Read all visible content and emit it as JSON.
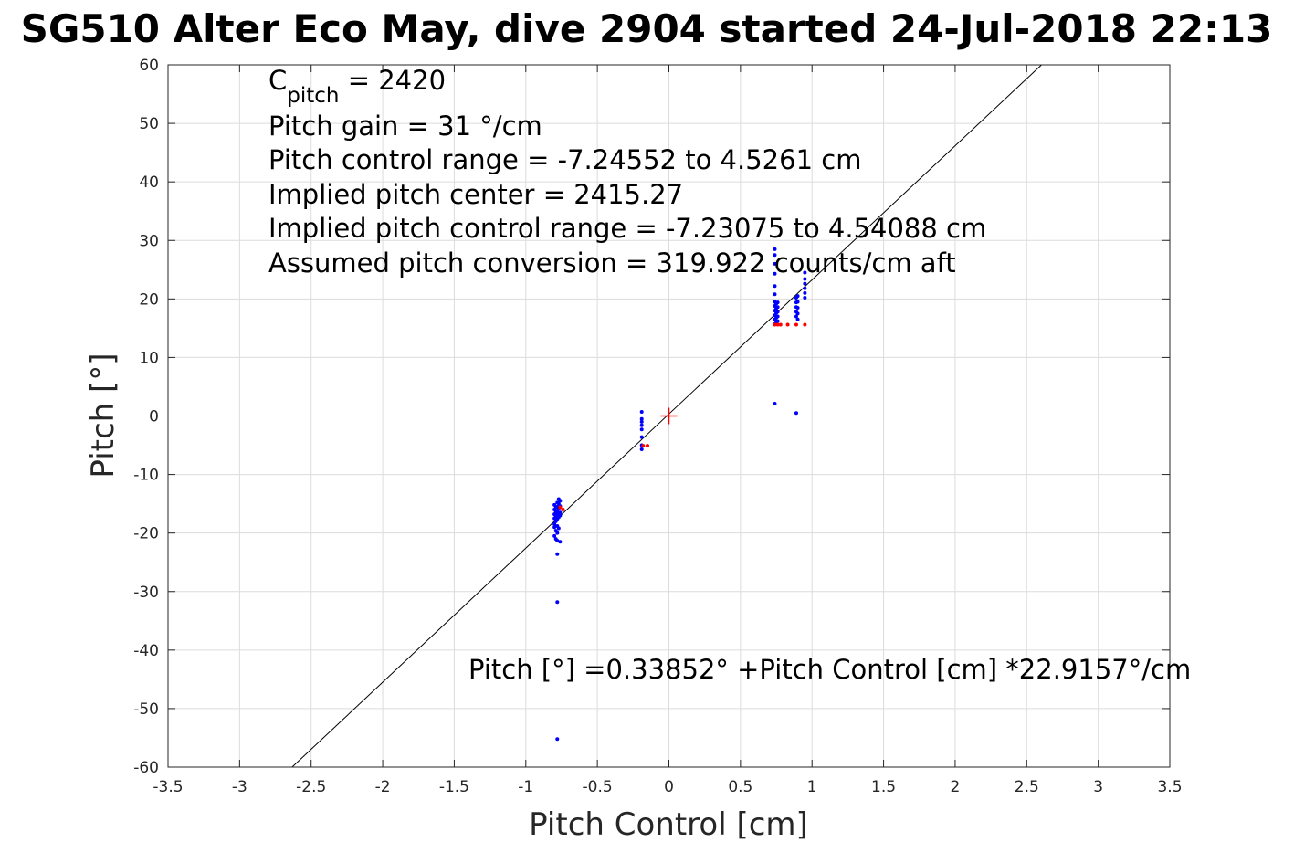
{
  "chart_data": {
    "type": "scatter",
    "title": "SG510 Alter Eco May, dive 2904 started 24-Jul-2018 22:13",
    "xlabel": "Pitch Control [cm]",
    "ylabel": "Pitch [°]",
    "xlim": [
      -3.5,
      3.5
    ],
    "ylim": [
      -60,
      60
    ],
    "xticks": [
      "-3.5",
      "-3",
      "-2.5",
      "-2",
      "-1.5",
      "-1",
      "-0.5",
      "0",
      "0.5",
      "1",
      "1.5",
      "2",
      "2.5",
      "3",
      "3.5"
    ],
    "yticks": [
      "60",
      "50",
      "40",
      "30",
      "20",
      "10",
      "0",
      "-10",
      "-20",
      "-30",
      "-40",
      "-50",
      "-60"
    ],
    "grid": true,
    "annotations": {
      "c_pitch_symbol": "C",
      "c_pitch_sub": "pitch",
      "c_pitch_value": " = 2420",
      "lines": [
        "Pitch gain = 31 °/cm",
        "Pitch control range = -7.24552 to 4.5261 cm",
        "Implied pitch center = 2415.27",
        "Implied pitch control range = -7.23075 to 4.54088 cm",
        "Assumed pitch conversion = 319.922 counts/cm aft"
      ],
      "fit_equation": "Pitch [°] =0.33852° +Pitch Control [cm] *22.9157°/cm"
    },
    "fit_line": {
      "intercept": 0.33852,
      "slope": 22.9157,
      "color": "#000000"
    },
    "center_marker": {
      "x": 0,
      "y": 0,
      "color": "#ff0000"
    },
    "series": [
      {
        "color": "#0000ff",
        "points": [
          [
            -0.8,
            -15.2
          ],
          [
            -0.8,
            -16.0
          ],
          [
            -0.8,
            -16.8
          ],
          [
            -0.8,
            -17.5
          ],
          [
            -0.8,
            -18.5
          ],
          [
            -0.8,
            -19.0
          ],
          [
            -0.8,
            -20.5
          ],
          [
            -0.79,
            -15.6
          ],
          [
            -0.79,
            -16.4
          ],
          [
            -0.79,
            -17.2
          ],
          [
            -0.79,
            -18.0
          ],
          [
            -0.79,
            -19.6
          ],
          [
            -0.79,
            -21.0
          ],
          [
            -0.78,
            -14.8
          ],
          [
            -0.78,
            -15.5
          ],
          [
            -0.78,
            -16.2
          ],
          [
            -0.78,
            -16.9
          ],
          [
            -0.78,
            -17.6
          ],
          [
            -0.78,
            -18.8
          ],
          [
            -0.78,
            -20.0
          ],
          [
            -0.78,
            -21.3
          ],
          [
            -0.78,
            -23.6
          ],
          [
            -0.78,
            -31.8
          ],
          [
            -0.78,
            -55.2
          ],
          [
            -0.77,
            -14.2
          ],
          [
            -0.77,
            -15.0
          ],
          [
            -0.77,
            -15.8
          ],
          [
            -0.77,
            -16.6
          ],
          [
            -0.77,
            -17.3
          ],
          [
            -0.77,
            -19.2
          ],
          [
            -0.76,
            -14.5
          ],
          [
            -0.76,
            -15.4
          ],
          [
            -0.76,
            -16.5
          ],
          [
            -0.76,
            -17.0
          ],
          [
            -0.76,
            -21.5
          ],
          [
            -0.19,
            0.7
          ],
          [
            -0.19,
            -0.5
          ],
          [
            -0.19,
            -1.0
          ],
          [
            -0.19,
            -1.6
          ],
          [
            -0.19,
            -2.3
          ],
          [
            -0.19,
            -3.6
          ],
          [
            -0.19,
            -5.0
          ],
          [
            -0.19,
            -5.7
          ],
          [
            0.74,
            2.1
          ],
          [
            0.74,
            15.7
          ],
          [
            0.74,
            16.5
          ],
          [
            0.74,
            17.2
          ],
          [
            0.74,
            18.0
          ],
          [
            0.74,
            18.8
          ],
          [
            0.74,
            19.5
          ],
          [
            0.74,
            20.8
          ],
          [
            0.74,
            22.2
          ],
          [
            0.74,
            24.3
          ],
          [
            0.74,
            26.0
          ],
          [
            0.74,
            27.5
          ],
          [
            0.74,
            28.5
          ],
          [
            0.75,
            16.0
          ],
          [
            0.75,
            16.8
          ],
          [
            0.75,
            17.6
          ],
          [
            0.75,
            18.4
          ],
          [
            0.75,
            19.2
          ],
          [
            0.76,
            16.2
          ],
          [
            0.76,
            17.0
          ],
          [
            0.76,
            17.8
          ],
          [
            0.76,
            18.6
          ],
          [
            0.76,
            19.4
          ],
          [
            0.89,
            0.5
          ],
          [
            0.89,
            17.0
          ],
          [
            0.89,
            17.8
          ],
          [
            0.89,
            18.6
          ],
          [
            0.89,
            19.4
          ],
          [
            0.89,
            20.2
          ],
          [
            0.9,
            16.5
          ],
          [
            0.9,
            17.5
          ],
          [
            0.9,
            18.5
          ],
          [
            0.9,
            19.5
          ],
          [
            0.9,
            20.5
          ],
          [
            0.95,
            20.2
          ],
          [
            0.95,
            21.0
          ],
          [
            0.95,
            21.8
          ],
          [
            0.95,
            22.6
          ],
          [
            0.95,
            23.4
          ],
          [
            0.95,
            24.5
          ]
        ]
      },
      {
        "color": "#ff0000",
        "points": [
          [
            -0.76,
            -15.6
          ],
          [
            -0.74,
            -16.0
          ],
          [
            -0.18,
            -5.1
          ],
          [
            -0.15,
            -5.1
          ],
          [
            0.74,
            15.6
          ],
          [
            0.76,
            15.6
          ],
          [
            0.78,
            15.6
          ],
          [
            0.83,
            15.6
          ],
          [
            0.89,
            15.6
          ],
          [
            0.95,
            15.6
          ]
        ]
      }
    ]
  }
}
